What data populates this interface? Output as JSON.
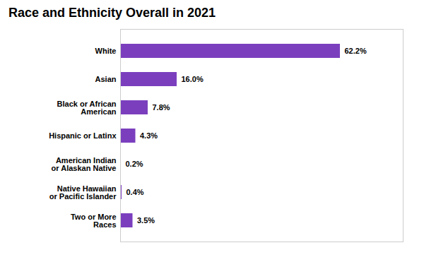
{
  "chart_data": {
    "type": "bar",
    "orientation": "horizontal",
    "title": "Race and Ethnicity Overall in 2021",
    "categories": [
      "White",
      "Asian",
      "Black or African\nAmerican",
      "Hispanic or Latinx",
      "American Indian\nor Alaskan Native",
      "Native Hawaiian\nor Pacific Islander",
      "Two or More\nRaces"
    ],
    "values": [
      62.2,
      16.0,
      7.8,
      4.3,
      0.2,
      0.4,
      3.5
    ],
    "value_labels": [
      "62.2%",
      "16.0%",
      "7.8%",
      "4.3%",
      "0.2%",
      "0.4%",
      "3.5%"
    ],
    "data_labels": true,
    "color": "#7B3FBE",
    "xlim": [
      0,
      80
    ],
    "tick_labels": "y"
  }
}
